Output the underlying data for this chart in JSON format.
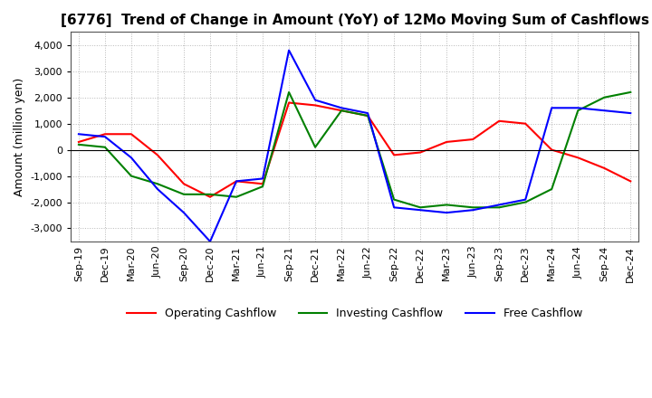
{
  "title": "[6776]  Trend of Change in Amount (YoY) of 12Mo Moving Sum of Cashflows",
  "ylabel": "Amount (million yen)",
  "x_labels": [
    "Sep-19",
    "Dec-19",
    "Mar-20",
    "Jun-20",
    "Sep-20",
    "Dec-20",
    "Mar-21",
    "Jun-21",
    "Sep-21",
    "Dec-21",
    "Mar-22",
    "Jun-22",
    "Sep-22",
    "Dec-22",
    "Mar-23",
    "Jun-23",
    "Sep-23",
    "Dec-23",
    "Mar-24",
    "Jun-24",
    "Sep-24",
    "Dec-24"
  ],
  "operating": [
    300,
    600,
    600,
    -200,
    -1300,
    -1800,
    -1200,
    -1300,
    1800,
    1700,
    1500,
    1300,
    -200,
    -100,
    300,
    400,
    1100,
    1000,
    0,
    -300,
    -700,
    -1200
  ],
  "investing": [
    200,
    100,
    -1000,
    -1300,
    -1700,
    -1700,
    -1800,
    -1400,
    2200,
    100,
    1500,
    1300,
    -1900,
    -2200,
    -2100,
    -2200,
    -2200,
    -2000,
    -1500,
    1500,
    2000,
    2200
  ],
  "free": [
    600,
    500,
    -300,
    -1500,
    -2400,
    -3500,
    -1200,
    -1100,
    3800,
    1900,
    1600,
    1400,
    -2200,
    -2300,
    -2400,
    -2300,
    -2100,
    -1900,
    1600,
    1600,
    1500,
    1400
  ],
  "operating_color": "#ff0000",
  "investing_color": "#008000",
  "free_color": "#0000ff",
  "ylim": [
    -3500,
    4500
  ],
  "yticks": [
    -3000,
    -2000,
    -1000,
    0,
    1000,
    2000,
    3000,
    4000
  ],
  "background_color": "#ffffff",
  "grid_color": "#999999"
}
